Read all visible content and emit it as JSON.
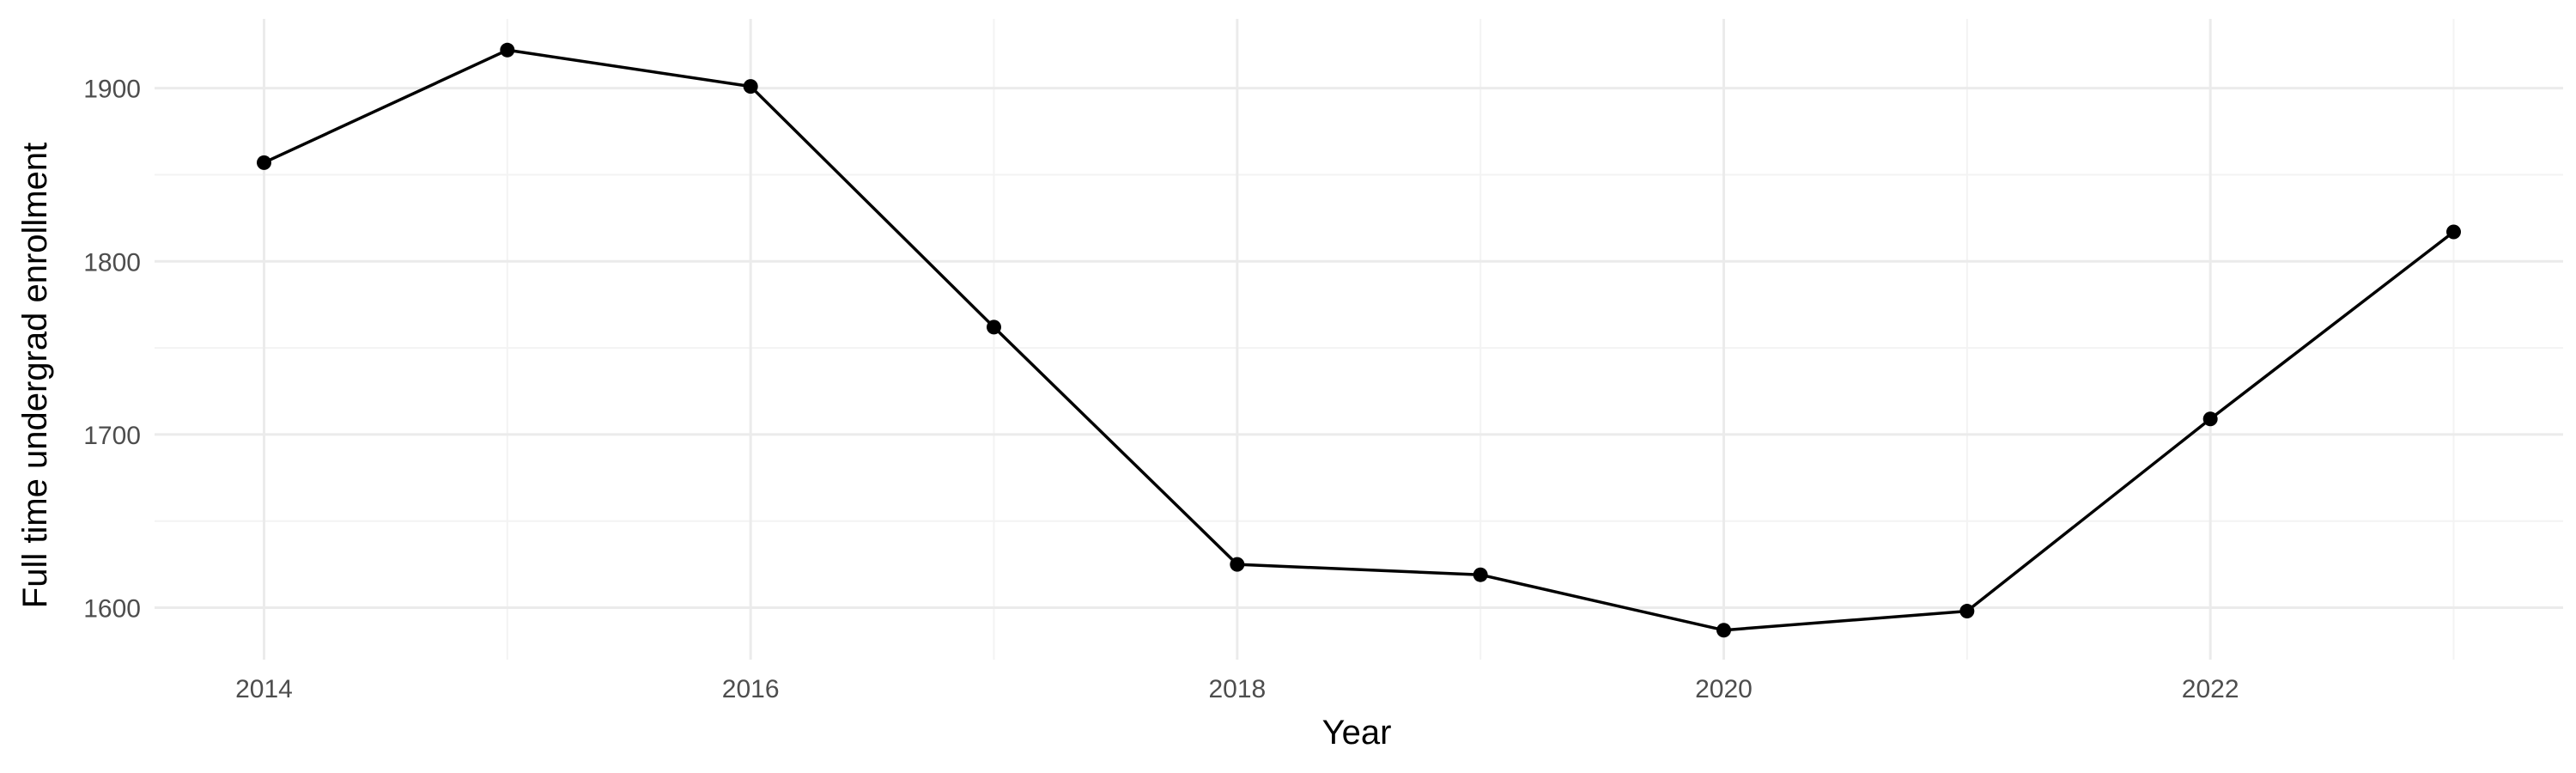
{
  "chart_data": {
    "type": "line",
    "title": "",
    "xlabel": "Year",
    "ylabel": "Full time undergrad enrollment",
    "x": [
      2014,
      2015,
      2016,
      2017,
      2018,
      2019,
      2020,
      2021,
      2022,
      2023
    ],
    "series": [
      {
        "values": [
          1857,
          1922,
          1901,
          1762,
          1625,
          1619,
          1587,
          1598,
          1709,
          1817
        ]
      }
    ],
    "x_ticks": [
      "2014",
      "2016",
      "2018",
      "2020",
      "2022"
    ],
    "y_ticks": [
      "1600",
      "1700",
      "1800",
      "1900"
    ],
    "xlim": [
      2013.55,
      2023.45
    ],
    "ylim": [
      1570,
      1940
    ],
    "grid": true,
    "legend": "none",
    "colors": {
      "line": "#000000",
      "point": "#000000",
      "grid_major": "#ebebeb",
      "grid_minor": "#f3f3f3",
      "tick_text": "#4d4d4d",
      "axis_title": "#000000",
      "background": "#ffffff"
    }
  }
}
